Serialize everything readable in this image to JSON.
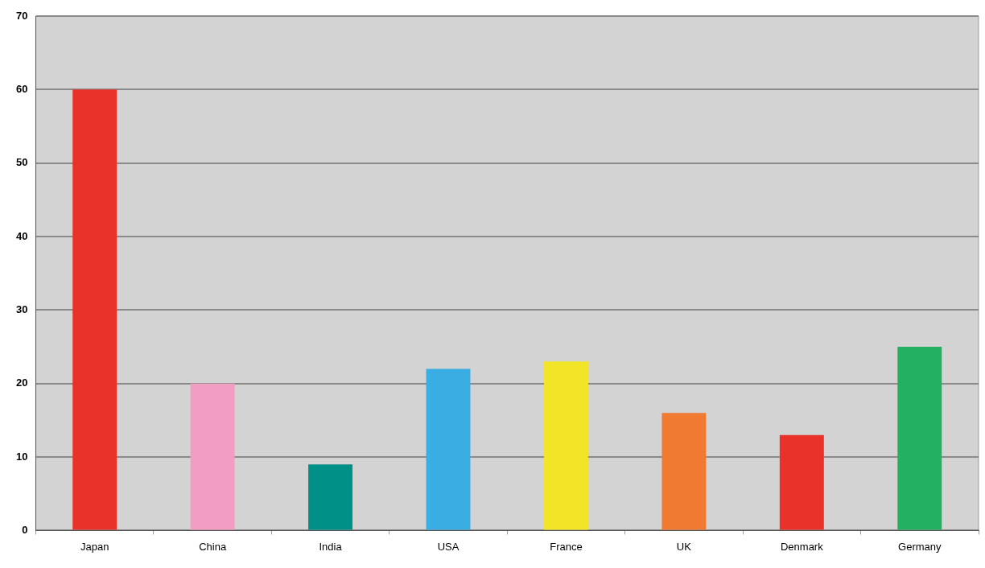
{
  "chart_data": {
    "type": "bar",
    "categories": [
      "Japan",
      "China",
      "India",
      "USA",
      "France",
      "UK",
      "Denmark",
      "Germany"
    ],
    "values": [
      60,
      20,
      9,
      22,
      23,
      16,
      13,
      25
    ],
    "colors": [
      "#e8322a",
      "#f29ec2",
      "#009087",
      "#3aaee2",
      "#f2e528",
      "#f17a33",
      "#e8322a",
      "#24b063"
    ],
    "ylim": [
      0,
      70
    ],
    "yticks": [
      0,
      10,
      20,
      30,
      40,
      50,
      60,
      70
    ],
    "grid": "y",
    "legend": false
  }
}
